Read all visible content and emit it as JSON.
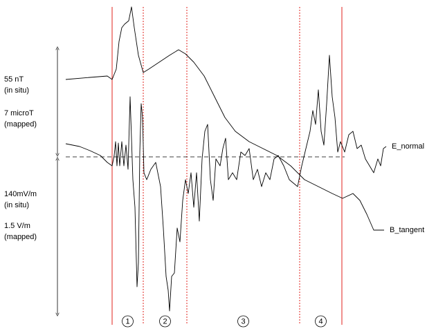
{
  "chart_data": {
    "type": "line",
    "xlim": [
      0,
      465
    ],
    "ylim": [
      -230,
      220
    ],
    "left_labels": {
      "upper": [
        "55 nT",
        "(in situ)",
        "7 microT",
        "(mapped)"
      ],
      "lower": [
        "140mV/m",
        "(in situ)",
        "1.5 V/m",
        "(mapped)"
      ]
    },
    "boundaries": [
      {
        "x": 67,
        "dashed": false
      },
      {
        "x": 112,
        "dashed": true
      },
      {
        "x": 175,
        "dashed": true
      },
      {
        "x": 338,
        "dashed": true
      },
      {
        "x": 399,
        "dashed": false
      }
    ],
    "regions": [
      "1",
      "2",
      "3",
      "4"
    ],
    "boundary_color": "#e0201b",
    "series": [
      {
        "name": "E_normal",
        "color": "#000000",
        "x": [
          0,
          10,
          20,
          35,
          50,
          60,
          67,
          70,
          72,
          74,
          76,
          78,
          81,
          84,
          87,
          90,
          93,
          95,
          97,
          100,
          103,
          105,
          107,
          109,
          111,
          113,
          117,
          123,
          130,
          137,
          141,
          145,
          148,
          150,
          153,
          157,
          161,
          165,
          169,
          173,
          177,
          181,
          185,
          189,
          193,
          197,
          201,
          205,
          209,
          213,
          217,
          223,
          227,
          231,
          235,
          241,
          247,
          253,
          259,
          265,
          271,
          277,
          283,
          289,
          295,
          301,
          307,
          315,
          323,
          329,
          335,
          341,
          347,
          353,
          357,
          361,
          365,
          369,
          373,
          377,
          381,
          385,
          389,
          393,
          397,
          403,
          409,
          415,
          421,
          427,
          433,
          439,
          445,
          451,
          455,
          459,
          463
        ],
        "values": [
          19,
          17,
          15,
          9,
          2,
          -8,
          -13,
          2,
          22,
          -13,
          20,
          -13,
          22,
          -13,
          17,
          -18,
          87,
          27,
          -33,
          -73,
          -188,
          -153,
          7,
          77,
          57,
          -23,
          -33,
          -18,
          -8,
          -43,
          -103,
          -173,
          -193,
          -223,
          -173,
          -168,
          -103,
          -123,
          -63,
          -33,
          -53,
          -23,
          -73,
          -23,
          -93,
          -3,
          37,
          47,
          -33,
          -63,
          -3,
          -13,
          12,
          27,
          -33,
          -23,
          -33,
          7,
          2,
          12,
          -33,
          -18,
          -43,
          -23,
          -33,
          -3,
          2,
          -13,
          -33,
          -38,
          -43,
          -13,
          12,
          37,
          67,
          47,
          97,
          37,
          17,
          77,
          147,
          87,
          57,
          7,
          22,
          7,
          32,
          37,
          12,
          17,
          -3,
          -13,
          -23,
          -3,
          -13,
          12,
          15
        ]
      },
      {
        "name": "B_tangent",
        "color": "#000000",
        "x": [
          0,
          35,
          60,
          67,
          73,
          77,
          81,
          85,
          91,
          95,
          99,
          105,
          112,
          120,
          135,
          150,
          163,
          173,
          185,
          200,
          215,
          230,
          245,
          265,
          285,
          305,
          325,
          345,
          365,
          385,
          400,
          415,
          425,
          435,
          445,
          460
        ],
        "values": [
          112,
          115,
          117,
          112,
          127,
          167,
          187,
          192,
          197,
          217,
          187,
          147,
          122,
          127,
          137,
          147,
          155,
          149,
          137,
          117,
          87,
          57,
          37,
          22,
          12,
          2,
          -13,
          -33,
          -43,
          -53,
          -60,
          -53,
          -63,
          -83,
          -106,
          -106
        ]
      }
    ]
  }
}
